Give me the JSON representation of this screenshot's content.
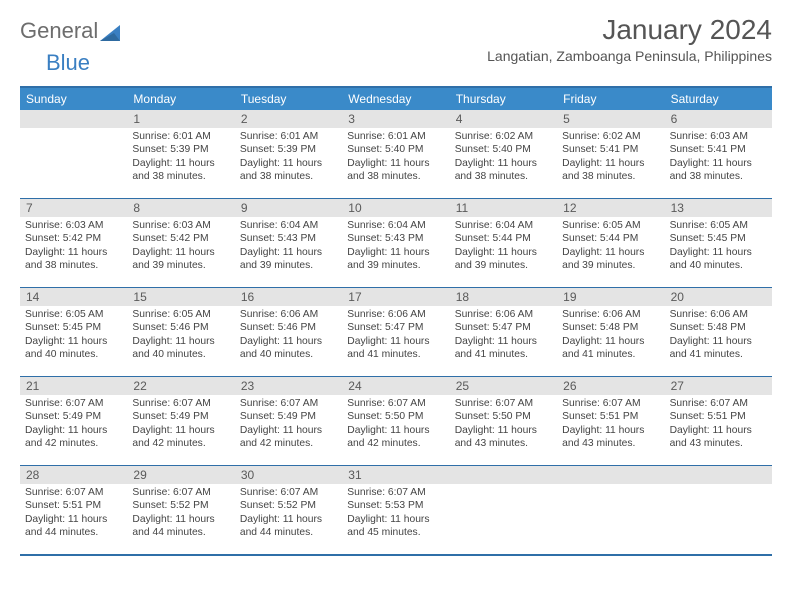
{
  "brand": {
    "word1": "General",
    "word2": "Blue"
  },
  "title": "January 2024",
  "location": "Langatian, Zamboanga Peninsula, Philippines",
  "colors": {
    "accent": "#3a8ac9",
    "border": "#2f6fa8",
    "daynum_bg": "#e4e4e4",
    "text_muted": "#555555",
    "text_body": "#444444",
    "logo_gray": "#6d6d6d",
    "logo_blue": "#3a7fc2"
  },
  "layout": {
    "cols": 7,
    "rows": 5,
    "first_weekday_index": 1
  },
  "dow": [
    "Sunday",
    "Monday",
    "Tuesday",
    "Wednesday",
    "Thursday",
    "Friday",
    "Saturday"
  ],
  "days": [
    {
      "n": 1,
      "sr": "6:01 AM",
      "ss": "5:39 PM",
      "dl": "11 hours and 38 minutes."
    },
    {
      "n": 2,
      "sr": "6:01 AM",
      "ss": "5:39 PM",
      "dl": "11 hours and 38 minutes."
    },
    {
      "n": 3,
      "sr": "6:01 AM",
      "ss": "5:40 PM",
      "dl": "11 hours and 38 minutes."
    },
    {
      "n": 4,
      "sr": "6:02 AM",
      "ss": "5:40 PM",
      "dl": "11 hours and 38 minutes."
    },
    {
      "n": 5,
      "sr": "6:02 AM",
      "ss": "5:41 PM",
      "dl": "11 hours and 38 minutes."
    },
    {
      "n": 6,
      "sr": "6:03 AM",
      "ss": "5:41 PM",
      "dl": "11 hours and 38 minutes."
    },
    {
      "n": 7,
      "sr": "6:03 AM",
      "ss": "5:42 PM",
      "dl": "11 hours and 38 minutes."
    },
    {
      "n": 8,
      "sr": "6:03 AM",
      "ss": "5:42 PM",
      "dl": "11 hours and 39 minutes."
    },
    {
      "n": 9,
      "sr": "6:04 AM",
      "ss": "5:43 PM",
      "dl": "11 hours and 39 minutes."
    },
    {
      "n": 10,
      "sr": "6:04 AM",
      "ss": "5:43 PM",
      "dl": "11 hours and 39 minutes."
    },
    {
      "n": 11,
      "sr": "6:04 AM",
      "ss": "5:44 PM",
      "dl": "11 hours and 39 minutes."
    },
    {
      "n": 12,
      "sr": "6:05 AM",
      "ss": "5:44 PM",
      "dl": "11 hours and 39 minutes."
    },
    {
      "n": 13,
      "sr": "6:05 AM",
      "ss": "5:45 PM",
      "dl": "11 hours and 40 minutes."
    },
    {
      "n": 14,
      "sr": "6:05 AM",
      "ss": "5:45 PM",
      "dl": "11 hours and 40 minutes."
    },
    {
      "n": 15,
      "sr": "6:05 AM",
      "ss": "5:46 PM",
      "dl": "11 hours and 40 minutes."
    },
    {
      "n": 16,
      "sr": "6:06 AM",
      "ss": "5:46 PM",
      "dl": "11 hours and 40 minutes."
    },
    {
      "n": 17,
      "sr": "6:06 AM",
      "ss": "5:47 PM",
      "dl": "11 hours and 41 minutes."
    },
    {
      "n": 18,
      "sr": "6:06 AM",
      "ss": "5:47 PM",
      "dl": "11 hours and 41 minutes."
    },
    {
      "n": 19,
      "sr": "6:06 AM",
      "ss": "5:48 PM",
      "dl": "11 hours and 41 minutes."
    },
    {
      "n": 20,
      "sr": "6:06 AM",
      "ss": "5:48 PM",
      "dl": "11 hours and 41 minutes."
    },
    {
      "n": 21,
      "sr": "6:07 AM",
      "ss": "5:49 PM",
      "dl": "11 hours and 42 minutes."
    },
    {
      "n": 22,
      "sr": "6:07 AM",
      "ss": "5:49 PM",
      "dl": "11 hours and 42 minutes."
    },
    {
      "n": 23,
      "sr": "6:07 AM",
      "ss": "5:49 PM",
      "dl": "11 hours and 42 minutes."
    },
    {
      "n": 24,
      "sr": "6:07 AM",
      "ss": "5:50 PM",
      "dl": "11 hours and 42 minutes."
    },
    {
      "n": 25,
      "sr": "6:07 AM",
      "ss": "5:50 PM",
      "dl": "11 hours and 43 minutes."
    },
    {
      "n": 26,
      "sr": "6:07 AM",
      "ss": "5:51 PM",
      "dl": "11 hours and 43 minutes."
    },
    {
      "n": 27,
      "sr": "6:07 AM",
      "ss": "5:51 PM",
      "dl": "11 hours and 43 minutes."
    },
    {
      "n": 28,
      "sr": "6:07 AM",
      "ss": "5:51 PM",
      "dl": "11 hours and 44 minutes."
    },
    {
      "n": 29,
      "sr": "6:07 AM",
      "ss": "5:52 PM",
      "dl": "11 hours and 44 minutes."
    },
    {
      "n": 30,
      "sr": "6:07 AM",
      "ss": "5:52 PM",
      "dl": "11 hours and 44 minutes."
    },
    {
      "n": 31,
      "sr": "6:07 AM",
      "ss": "5:53 PM",
      "dl": "11 hours and 45 minutes."
    }
  ],
  "labels": {
    "sunrise": "Sunrise:",
    "sunset": "Sunset:",
    "daylight": "Daylight:"
  }
}
